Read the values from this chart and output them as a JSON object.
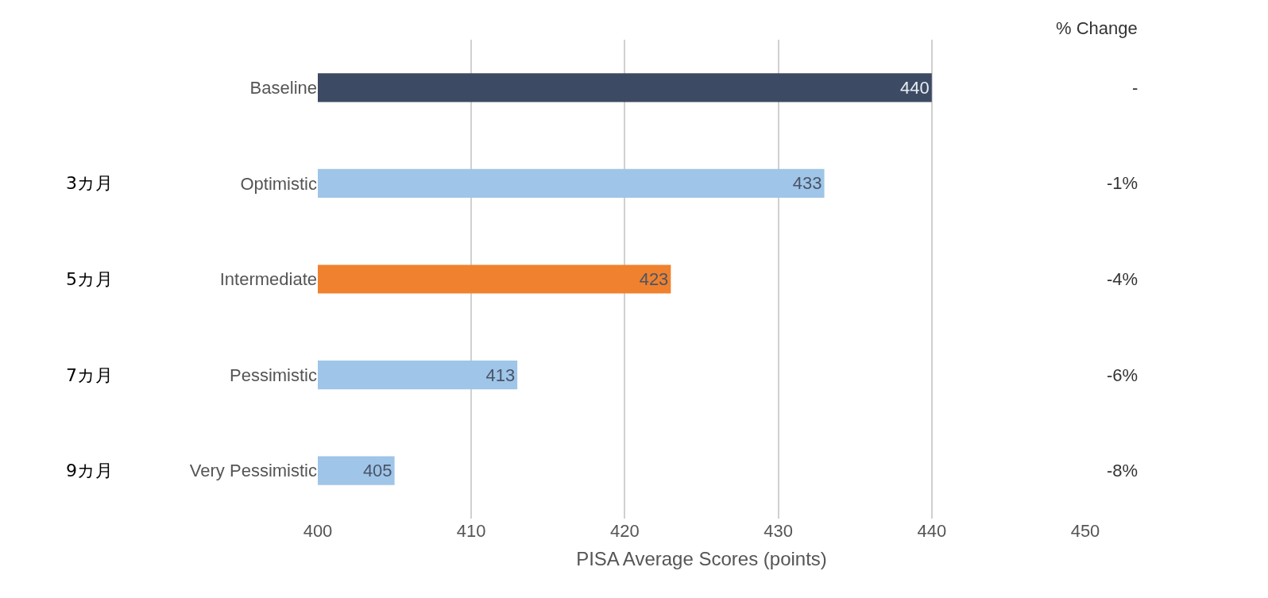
{
  "chart_data": {
    "type": "bar",
    "orientation": "horizontal",
    "xlabel": "PISA Average Scores (points)",
    "categories": [
      "Baseline",
      "Optimistic",
      "Intermediate",
      "Pessimistic",
      "Very Pessimistic"
    ],
    "values": [
      440,
      433,
      423,
      413,
      405
    ],
    "colors": [
      "#3d4a63",
      "#9fc5e8",
      "#f0812e",
      "#9fc5e8",
      "#9fc5e8"
    ],
    "data_labels": true,
    "xlim": [
      400,
      450
    ],
    "xticks": [
      400,
      410,
      420,
      430,
      440,
      450
    ],
    "grid": "x",
    "annotations": [
      "% Change",
      "-",
      "-1%",
      "-4%",
      "-6%",
      "-8%",
      "3カ月",
      "5カ月",
      "7カ月",
      "9カ月"
    ]
  }
}
